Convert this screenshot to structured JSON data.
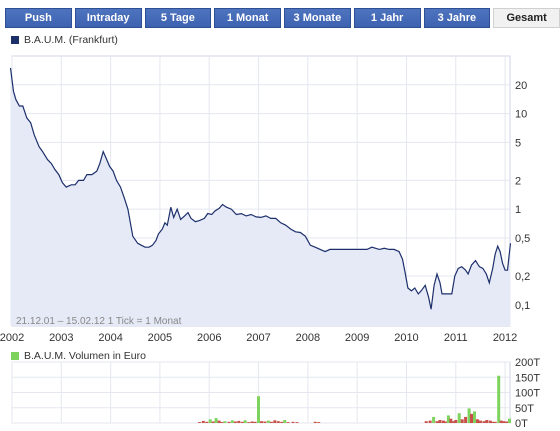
{
  "tabs": [
    {
      "label": "Push"
    },
    {
      "label": "Intraday"
    },
    {
      "label": "5 Tage"
    },
    {
      "label": "1 Monat"
    },
    {
      "label": "3 Monate"
    },
    {
      "label": "1 Jahr"
    },
    {
      "label": "3 Jahre"
    },
    {
      "label": "Gesamt",
      "active": true
    }
  ],
  "colors": {
    "tab_bg": "#4169b5",
    "price_line": "#1c2f6b",
    "price_fill": "#e6eaf7",
    "volume_up": "#7ed35f",
    "volume_down": "#c8504b"
  },
  "chart_data": [
    {
      "type": "area",
      "title": "B.A.U.M. (Frankfurt)",
      "subtitle": "21.12.01 – 15.02.12   1 Tick = 1 Monat",
      "x_ticks": [
        "2002",
        "2003",
        "2004",
        "2005",
        "2006",
        "2007",
        "2008",
        "2009",
        "2010",
        "2011",
        "2012"
      ],
      "y_scale": "log",
      "y_ticks": [
        "20",
        "10",
        "5",
        "2",
        "1",
        "0,5",
        "0,2",
        "0,1"
      ],
      "ylim": [
        0.06,
        40
      ],
      "xlim": [
        2002.0,
        2012.1
      ],
      "grid": true,
      "series": [
        {
          "name": "B.A.U.M. (Frankfurt)",
          "points": [
            [
              2001.97,
              30
            ],
            [
              2002.03,
              17
            ],
            [
              2002.08,
              14
            ],
            [
              2002.15,
              12
            ],
            [
              2002.22,
              12
            ],
            [
              2002.3,
              9
            ],
            [
              2002.38,
              8
            ],
            [
              2002.45,
              6
            ],
            [
              2002.55,
              4.5
            ],
            [
              2002.62,
              4
            ],
            [
              2002.72,
              3.3
            ],
            [
              2002.8,
              3.0
            ],
            [
              2002.87,
              2.6
            ],
            [
              2002.95,
              2.3
            ],
            [
              2003.02,
              1.9
            ],
            [
              2003.1,
              1.7
            ],
            [
              2003.2,
              1.8
            ],
            [
              2003.28,
              1.8
            ],
            [
              2003.35,
              2.0
            ],
            [
              2003.45,
              2.0
            ],
            [
              2003.52,
              2.3
            ],
            [
              2003.62,
              2.3
            ],
            [
              2003.72,
              2.5
            ],
            [
              2003.78,
              3.0
            ],
            [
              2003.85,
              4.0
            ],
            [
              2003.9,
              3.5
            ],
            [
              2003.98,
              2.8
            ],
            [
              2004.05,
              2.5
            ],
            [
              2004.12,
              2.0
            ],
            [
              2004.2,
              1.7
            ],
            [
              2004.28,
              1.3
            ],
            [
              2004.35,
              1.0
            ],
            [
              2004.45,
              0.52
            ],
            [
              2004.55,
              0.44
            ],
            [
              2004.62,
              0.42
            ],
            [
              2004.7,
              0.4
            ],
            [
              2004.78,
              0.4
            ],
            [
              2004.85,
              0.42
            ],
            [
              2004.92,
              0.47
            ],
            [
              2004.97,
              0.55
            ],
            [
              2005.05,
              0.62
            ],
            [
              2005.1,
              0.72
            ],
            [
              2005.15,
              0.68
            ],
            [
              2005.22,
              1.05
            ],
            [
              2005.28,
              0.82
            ],
            [
              2005.35,
              1.0
            ],
            [
              2005.42,
              0.78
            ],
            [
              2005.5,
              0.85
            ],
            [
              2005.57,
              0.92
            ],
            [
              2005.63,
              0.8
            ],
            [
              2005.72,
              0.74
            ],
            [
              2005.8,
              0.76
            ],
            [
              2005.9,
              0.8
            ],
            [
              2005.97,
              0.9
            ],
            [
              2006.05,
              0.88
            ],
            [
              2006.12,
              0.96
            ],
            [
              2006.2,
              1.02
            ],
            [
              2006.27,
              1.12
            ],
            [
              2006.35,
              1.05
            ],
            [
              2006.45,
              1.0
            ],
            [
              2006.55,
              0.88
            ],
            [
              2006.65,
              0.9
            ],
            [
              2006.75,
              0.85
            ],
            [
              2006.85,
              0.88
            ],
            [
              2006.95,
              0.83
            ],
            [
              2007.05,
              0.82
            ],
            [
              2007.15,
              0.85
            ],
            [
              2007.25,
              0.8
            ],
            [
              2007.35,
              0.8
            ],
            [
              2007.45,
              0.72
            ],
            [
              2007.55,
              0.68
            ],
            [
              2007.65,
              0.62
            ],
            [
              2007.75,
              0.58
            ],
            [
              2007.85,
              0.57
            ],
            [
              2007.95,
              0.52
            ],
            [
              2008.05,
              0.42
            ],
            [
              2008.15,
              0.4
            ],
            [
              2008.25,
              0.38
            ],
            [
              2008.35,
              0.36
            ],
            [
              2008.45,
              0.38
            ],
            [
              2008.55,
              0.38
            ],
            [
              2008.65,
              0.38
            ],
            [
              2008.75,
              0.38
            ],
            [
              2008.85,
              0.38
            ],
            [
              2008.95,
              0.38
            ],
            [
              2009.1,
              0.38
            ],
            [
              2009.2,
              0.38
            ],
            [
              2009.3,
              0.4
            ],
            [
              2009.45,
              0.38
            ],
            [
              2009.55,
              0.39
            ],
            [
              2009.65,
              0.38
            ],
            [
              2009.75,
              0.38
            ],
            [
              2009.85,
              0.36
            ],
            [
              2009.92,
              0.3
            ],
            [
              2009.97,
              0.22
            ],
            [
              2010.03,
              0.15
            ],
            [
              2010.1,
              0.14
            ],
            [
              2010.17,
              0.15
            ],
            [
              2010.24,
              0.13
            ],
            [
              2010.3,
              0.14
            ],
            [
              2010.38,
              0.16
            ],
            [
              2010.45,
              0.12
            ],
            [
              2010.5,
              0.09
            ],
            [
              2010.56,
              0.16
            ],
            [
              2010.62,
              0.21
            ],
            [
              2010.68,
              0.17
            ],
            [
              2010.72,
              0.13
            ],
            [
              2010.78,
              0.13
            ],
            [
              2010.85,
              0.13
            ],
            [
              2010.92,
              0.13
            ],
            [
              2010.98,
              0.2
            ],
            [
              2011.05,
              0.24
            ],
            [
              2011.12,
              0.25
            ],
            [
              2011.2,
              0.23
            ],
            [
              2011.25,
              0.21
            ],
            [
              2011.32,
              0.26
            ],
            [
              2011.4,
              0.29
            ],
            [
              2011.48,
              0.25
            ],
            [
              2011.55,
              0.24
            ],
            [
              2011.62,
              0.21
            ],
            [
              2011.68,
              0.17
            ],
            [
              2011.75,
              0.24
            ],
            [
              2011.8,
              0.34
            ],
            [
              2011.85,
              0.41
            ],
            [
              2011.9,
              0.36
            ],
            [
              2011.95,
              0.27
            ],
            [
              2012.0,
              0.23
            ],
            [
              2012.05,
              0.23
            ],
            [
              2012.08,
              0.32
            ],
            [
              2012.11,
              0.44
            ]
          ]
        }
      ]
    },
    {
      "type": "bar",
      "title": "B.A.U.M. Volumen in Euro",
      "y_ticks": [
        "200T",
        "150T",
        "100T",
        "50T",
        "0T"
      ],
      "ylim": [
        0,
        200
      ],
      "bars": [
        [
          2005.8,
          3,
          "down"
        ],
        [
          2005.88,
          7,
          "down"
        ],
        [
          2005.95,
          4,
          "down"
        ],
        [
          2006.02,
          12,
          "up"
        ],
        [
          2006.08,
          5,
          "down"
        ],
        [
          2006.14,
          16,
          "up"
        ],
        [
          2006.2,
          8,
          "down"
        ],
        [
          2006.26,
          3,
          "down"
        ],
        [
          2006.32,
          6,
          "up"
        ],
        [
          2006.4,
          4,
          "down"
        ],
        [
          2006.47,
          9,
          "up"
        ],
        [
          2006.53,
          5,
          "down"
        ],
        [
          2006.6,
          7,
          "down"
        ],
        [
          2006.67,
          4,
          "down"
        ],
        [
          2006.73,
          9,
          "up"
        ],
        [
          2006.8,
          3,
          "down"
        ],
        [
          2006.87,
          5,
          "down"
        ],
        [
          2006.93,
          4,
          "down"
        ],
        [
          2007.0,
          88,
          "up"
        ],
        [
          2007.06,
          6,
          "down"
        ],
        [
          2007.13,
          5,
          "down"
        ],
        [
          2007.2,
          8,
          "up"
        ],
        [
          2007.26,
          4,
          "down"
        ],
        [
          2007.33,
          9,
          "down"
        ],
        [
          2007.4,
          6,
          "down"
        ],
        [
          2007.47,
          4,
          "down"
        ],
        [
          2007.53,
          10,
          "up"
        ],
        [
          2007.6,
          3,
          "down"
        ],
        [
          2007.7,
          4,
          "down"
        ],
        [
          2007.78,
          3,
          "down"
        ],
        [
          2008.15,
          4,
          "down"
        ],
        [
          2008.22,
          3,
          "down"
        ],
        [
          2010.4,
          6,
          "down"
        ],
        [
          2010.48,
          8,
          "down"
        ],
        [
          2010.55,
          20,
          "up"
        ],
        [
          2010.62,
          6,
          "down"
        ],
        [
          2010.68,
          10,
          "down"
        ],
        [
          2010.75,
          8,
          "down"
        ],
        [
          2010.8,
          5,
          "down"
        ],
        [
          2010.85,
          25,
          "up"
        ],
        [
          2010.9,
          14,
          "down"
        ],
        [
          2010.95,
          6,
          "down"
        ],
        [
          2011.0,
          10,
          "down"
        ],
        [
          2011.07,
          32,
          "up"
        ],
        [
          2011.13,
          12,
          "down"
        ],
        [
          2011.2,
          20,
          "down"
        ],
        [
          2011.27,
          48,
          "up"
        ],
        [
          2011.32,
          30,
          "down"
        ],
        [
          2011.38,
          38,
          "up"
        ],
        [
          2011.44,
          12,
          "down"
        ],
        [
          2011.5,
          8,
          "down"
        ],
        [
          2011.57,
          6,
          "down"
        ],
        [
          2011.63,
          10,
          "down"
        ],
        [
          2011.7,
          8,
          "down"
        ],
        [
          2011.75,
          4,
          "down"
        ],
        [
          2011.8,
          4,
          "down"
        ],
        [
          2011.87,
          155,
          "up"
        ],
        [
          2011.92,
          8,
          "down"
        ],
        [
          2011.97,
          6,
          "down"
        ],
        [
          2012.03,
          5,
          "down"
        ],
        [
          2012.09,
          14,
          "up"
        ]
      ]
    }
  ]
}
